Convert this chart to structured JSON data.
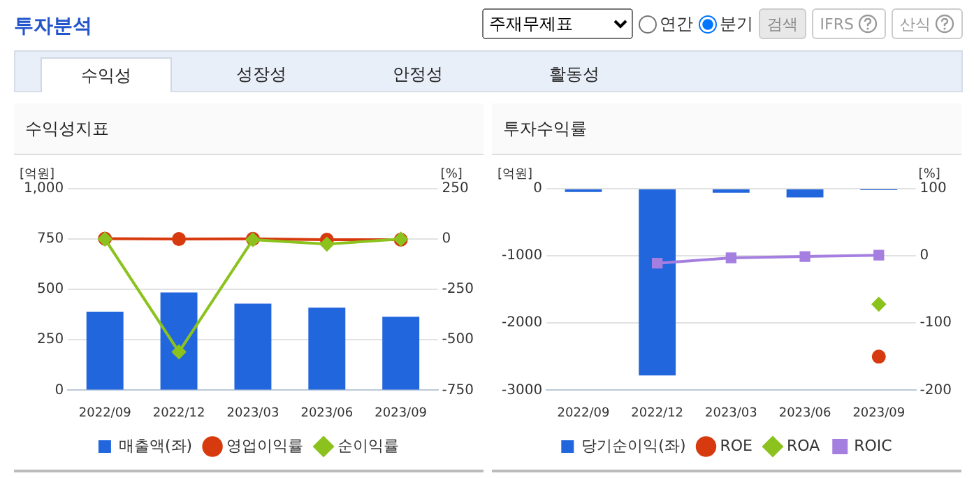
{
  "chart_data": [
    {
      "type": "other",
      "title": "투자분석",
      "annotations": [
        "주재무제표",
        "연간",
        "분기",
        "검색",
        "IFRS",
        "산식",
        "수익성",
        "성장성",
        "안정성",
        "활동성"
      ]
    },
    {
      "type": "bar",
      "title": "수익성지표",
      "ylabel": "[억원]",
      "y2label": "[%]",
      "categories": [
        "2022/09",
        "2022/12",
        "2023/03",
        "2023/06",
        "2023/09"
      ],
      "series": [
        {
          "name": "매출액(좌)",
          "type": "bar",
          "color": "#2266dd",
          "values": [
            390,
            485,
            430,
            410,
            365
          ]
        },
        {
          "name": "영업이익률",
          "type": "line",
          "axis": "y2",
          "marker": "circle",
          "color": "#d63a0e",
          "values": [
            2,
            0,
            1,
            -3,
            -3
          ]
        },
        {
          "name": "순이익률",
          "type": "line",
          "axis": "y2",
          "marker": "diamond",
          "color": "#8cc21e",
          "values": [
            0,
            -560,
            -3,
            -25,
            0
          ]
        }
      ],
      "ylim": [
        0,
        1000
      ],
      "yticks": [
        0,
        250,
        500,
        750,
        {
          "value": 1000,
          "label": "1,000"
        }
      ],
      "y2lim": [
        -750,
        250
      ],
      "y2ticks": [
        -750,
        -500,
        -250,
        0,
        250
      ],
      "grid": "y",
      "legend": "bottom"
    },
    {
      "type": "bar",
      "title": "투자수익률",
      "ylabel": "[억원]",
      "y2label": "[%]",
      "categories": [
        "2022/09",
        "2022/12",
        "2023/03",
        "2023/06",
        "2023/09"
      ],
      "series": [
        {
          "name": "당기순이익(좌)",
          "type": "bar",
          "color": "#2266dd",
          "values": [
            -50,
            -2780,
            -60,
            -130,
            -20
          ]
        },
        {
          "name": "ROE",
          "type": "line",
          "axis": "y2",
          "marker": "circle",
          "color": "#d63a0e",
          "values": [
            null,
            null,
            null,
            null,
            -150
          ]
        },
        {
          "name": "ROA",
          "type": "line",
          "axis": "y2",
          "marker": "diamond",
          "color": "#8cc21e",
          "values": [
            null,
            null,
            null,
            null,
            -72
          ]
        },
        {
          "name": "ROIC",
          "type": "line",
          "axis": "y2",
          "marker": "square",
          "color": "#a57fe0",
          "values": [
            null,
            -11,
            -3,
            -1,
            1
          ]
        }
      ],
      "ylim": [
        -3000,
        0
      ],
      "yticks": [
        -3000,
        -2000,
        -1000,
        0
      ],
      "y2lim": [
        -200,
        100
      ],
      "y2ticks": [
        -200,
        -100,
        0,
        100
      ],
      "grid": "y",
      "legend": "bottom"
    }
  ]
}
